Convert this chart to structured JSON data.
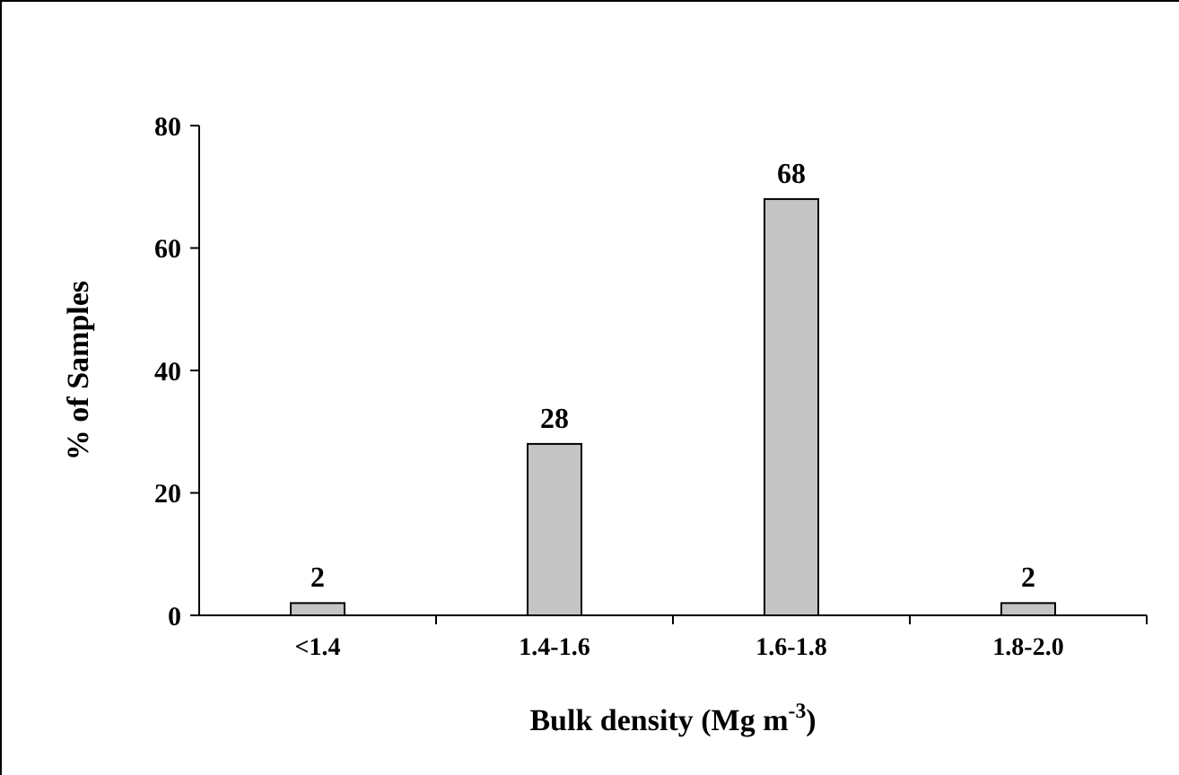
{
  "chart_data": {
    "type": "bar",
    "xlabel": "Bulk density (Mg m$^{-3}$)",
    "ylabel": "% of Samples",
    "categories": [
      "<1.4",
      "1.4-1.6",
      "1.6-1.8",
      "1.8-2.0"
    ],
    "values": [
      2,
      28,
      68,
      2
    ],
    "color": "#c4c4c4",
    "ylim": [
      0,
      80
    ],
    "yticks": [
      0,
      20,
      40,
      60,
      80
    ],
    "grid": false,
    "data_labels": true
  }
}
